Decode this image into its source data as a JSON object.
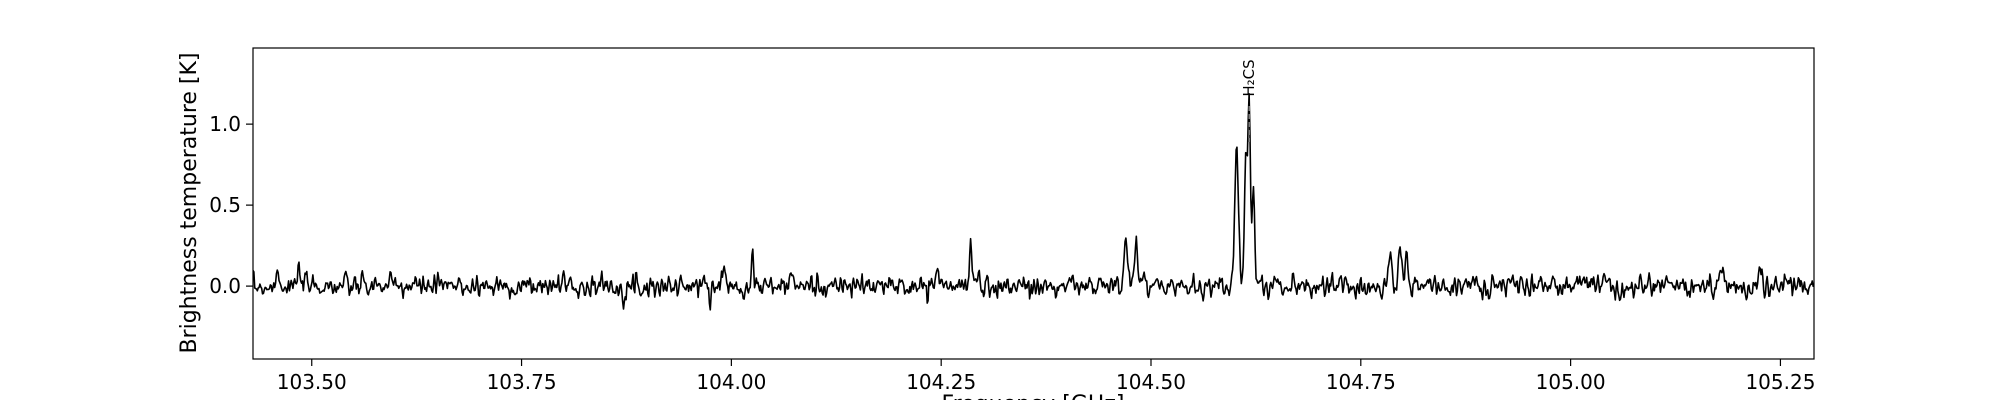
{
  "chart_data": {
    "type": "line",
    "title": "",
    "xlabel": "Frequency [GHz]",
    "ylabel": "Brightness temperature [K]",
    "xlim": [
      103.43,
      105.29
    ],
    "ylim": [
      -0.45,
      1.47
    ],
    "grid": false,
    "legend": "none",
    "line_color": "#000000",
    "annotation_line_color": "#999999",
    "xticks": [
      {
        "value": 103.5,
        "label": "103.50"
      },
      {
        "value": 103.75,
        "label": "103.75"
      },
      {
        "value": 104.0,
        "label": "104.00"
      },
      {
        "value": 104.25,
        "label": "104.25"
      },
      {
        "value": 104.5,
        "label": "104.50"
      },
      {
        "value": 104.75,
        "label": "104.75"
      },
      {
        "value": 105.0,
        "label": "105.00"
      },
      {
        "value": 105.25,
        "label": "105.25"
      }
    ],
    "yticks": [
      {
        "value": 0.0,
        "label": "0.0"
      },
      {
        "value": 0.5,
        "label": "0.5"
      },
      {
        "value": 1.0,
        "label": "1.0"
      }
    ],
    "annotations": [
      {
        "label": "H₂CS",
        "x": 104.617
      }
    ],
    "series": [
      {
        "noise_sigma": 0.045,
        "features": [
          {
            "x": 103.46,
            "amp": 0.12,
            "width": 0.0015
          },
          {
            "x": 103.485,
            "amp": 0.1,
            "width": 0.0015
          },
          {
            "x": 103.8,
            "amp": 0.08,
            "width": 0.0015
          },
          {
            "x": 103.99,
            "amp": 0.1,
            "width": 0.002
          },
          {
            "x": 104.025,
            "amp": 0.18,
            "width": 0.0015
          },
          {
            "x": 104.07,
            "amp": 0.08,
            "width": 0.0015
          },
          {
            "x": 104.245,
            "amp": 0.12,
            "width": 0.0015
          },
          {
            "x": 104.285,
            "amp": 0.3,
            "width": 0.0012
          },
          {
            "x": 104.295,
            "amp": 0.12,
            "width": 0.0012
          },
          {
            "x": 104.47,
            "amp": 0.25,
            "width": 0.002
          },
          {
            "x": 104.482,
            "amp": 0.25,
            "width": 0.002
          },
          {
            "x": 104.492,
            "amp": 0.1,
            "width": 0.0015
          },
          {
            "x": 104.602,
            "amp": 0.9,
            "width": 0.0022
          },
          {
            "x": 104.613,
            "amp": 0.78,
            "width": 0.0018
          },
          {
            "x": 104.617,
            "amp": 1.12,
            "width": 0.0014
          },
          {
            "x": 104.622,
            "amp": 0.62,
            "width": 0.0016
          },
          {
            "x": 104.785,
            "amp": 0.2,
            "width": 0.002
          },
          {
            "x": 104.797,
            "amp": 0.26,
            "width": 0.002
          },
          {
            "x": 104.805,
            "amp": 0.18,
            "width": 0.0015
          },
          {
            "x": 105.04,
            "amp": 0.1,
            "width": 0.002
          },
          {
            "x": 105.18,
            "amp": 0.12,
            "width": 0.002
          },
          {
            "x": 105.225,
            "amp": 0.12,
            "width": 0.0015
          }
        ]
      }
    ]
  }
}
